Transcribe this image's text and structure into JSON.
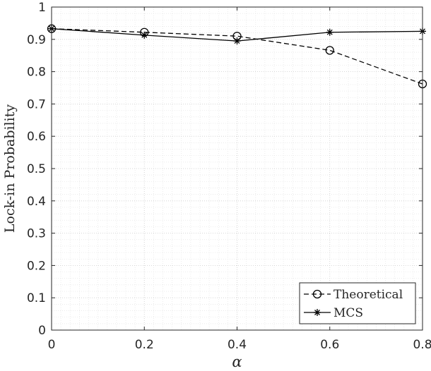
{
  "chart_data": {
    "type": "line",
    "xlabel": "α",
    "ylabel": "Lock-in Probability",
    "xlim": [
      0,
      0.8
    ],
    "ylim": [
      0,
      1
    ],
    "x": [
      0,
      0.2,
      0.4,
      0.6,
      0.8
    ],
    "xticks": [
      "0",
      "0.2",
      "0.4",
      "0.6",
      "0.8"
    ],
    "yticks": [
      "0",
      "0.1",
      "0.2",
      "0.3",
      "0.4",
      "0.5",
      "0.6",
      "0.7",
      "0.8",
      "0.9",
      "1"
    ],
    "grid": "on (major and minor, dotted)",
    "legend_position": "bottom-right",
    "series": [
      {
        "name": "Theoretical",
        "values": [
          0.933,
          0.922,
          0.91,
          0.866,
          0.762
        ],
        "line_style": "dashed",
        "marker": "circle",
        "color": "#000000"
      },
      {
        "name": "MCS",
        "values": [
          0.933,
          0.913,
          0.895,
          0.922,
          0.925
        ],
        "line_style": "solid",
        "marker": "asterisk",
        "color": "#000000"
      }
    ]
  }
}
